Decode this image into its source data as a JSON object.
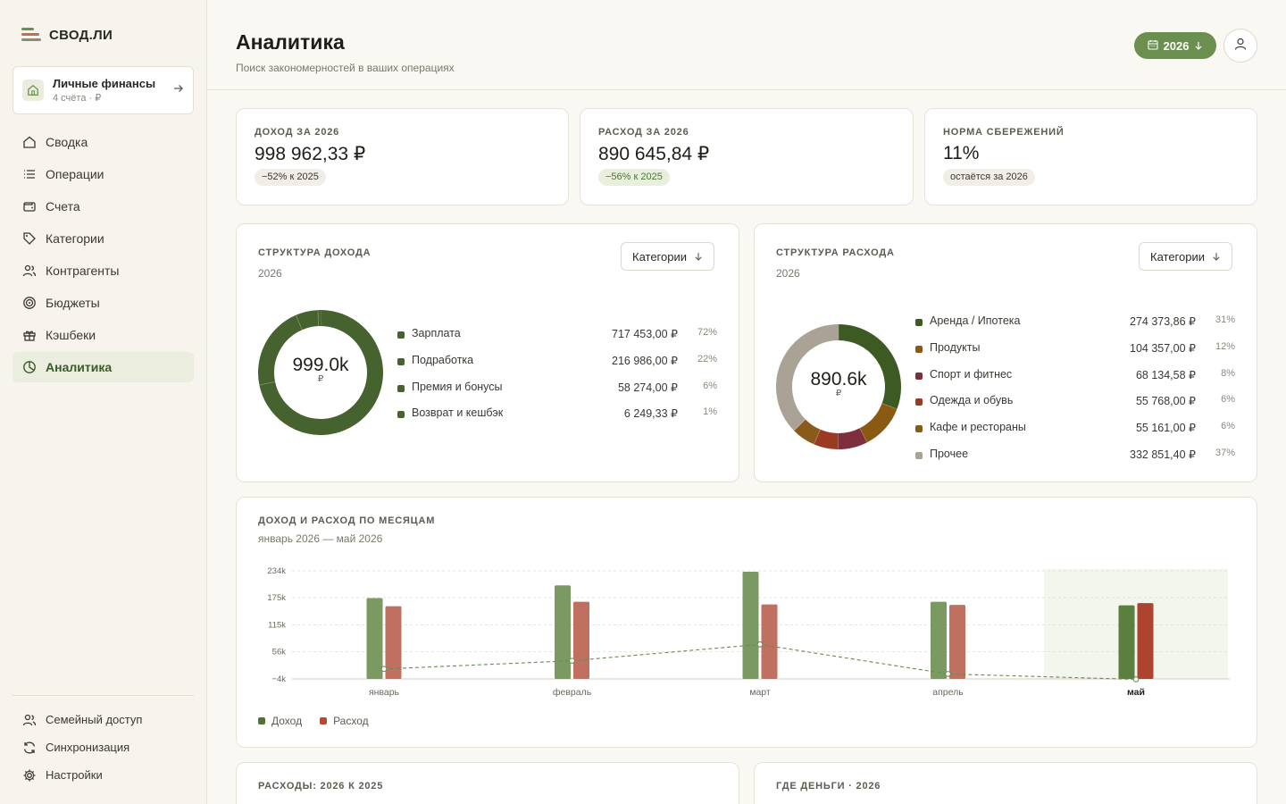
{
  "app": {
    "name": "СВОД.ЛИ"
  },
  "workspace": {
    "title": "Личные финансы",
    "subtitle": "4 счёта · ₽"
  },
  "nav": [
    {
      "label": "Сводка",
      "icon": "home-icon"
    },
    {
      "label": "Операции",
      "icon": "list-icon"
    },
    {
      "label": "Счета",
      "icon": "wallet-icon"
    },
    {
      "label": "Категории",
      "icon": "tag-icon"
    },
    {
      "label": "Контрагенты",
      "icon": "users-icon"
    },
    {
      "label": "Бюджеты",
      "icon": "target-icon"
    },
    {
      "label": "Кэшбеки",
      "icon": "gift-icon"
    },
    {
      "label": "Аналитика",
      "icon": "pie-icon",
      "active": true
    }
  ],
  "nav_bottom": [
    {
      "label": "Семейный доступ",
      "icon": "users-icon"
    },
    {
      "label": "Синхронизация",
      "icon": "sync-icon"
    },
    {
      "label": "Настройки",
      "icon": "settings-icon"
    }
  ],
  "header": {
    "title": "Аналитика",
    "subtitle": "Поиск закономерностей в ваших операциях",
    "year": "2026"
  },
  "kpis": [
    {
      "label": "ДОХОД ЗА 2026",
      "value": "998 962,33 ₽",
      "badge": "−52% к 2025",
      "badge_tone": "neutral"
    },
    {
      "label": "РАСХОД ЗА 2026",
      "value": "890 645,84 ₽",
      "badge": "−56% к 2025",
      "badge_tone": "green"
    },
    {
      "label": "НОРМА СБЕРЕЖЕНИЙ",
      "value": "11%",
      "badge": "остаётся за 2026",
      "badge_tone": "neutral"
    }
  ],
  "income_structure": {
    "title": "СТРУКТУРА ДОХОДА",
    "subtitle": "2026",
    "select": "Категории",
    "center_value": "999.0k",
    "center_unit": "₽",
    "items": [
      {
        "name": "Зарплата",
        "amount": "717 453,00 ₽",
        "pct": "72%",
        "share": 71.8,
        "color": "#46622f"
      },
      {
        "name": "Подработка",
        "amount": "216 986,00 ₽",
        "pct": "22%",
        "share": 21.7,
        "color": "#46622f"
      },
      {
        "name": "Премия и бонусы",
        "amount": "58 274,00 ₽",
        "pct": "6%",
        "share": 5.8,
        "color": "#46622f"
      },
      {
        "name": "Возврат и кешбэк",
        "amount": "6 249,33 ₽",
        "pct": "1%",
        "share": 0.7,
        "color": "#46622f"
      }
    ]
  },
  "expense_structure": {
    "title": "СТРУКТУРА РАСХОДА",
    "subtitle": "2026",
    "select": "Категории",
    "center_value": "890.6k",
    "center_unit": "₽",
    "items": [
      {
        "name": "Аренда / Ипотека",
        "amount": "274 373,86 ₽",
        "pct": "31%",
        "share": 30.8,
        "color": "#3d5a22"
      },
      {
        "name": "Продукты",
        "amount": "104 357,00 ₽",
        "pct": "12%",
        "share": 11.7,
        "color": "#8b5a12"
      },
      {
        "name": "Спорт и фитнес",
        "amount": "68 134,58 ₽",
        "pct": "8%",
        "share": 7.7,
        "color": "#7e2e3c"
      },
      {
        "name": "Одежда и обувь",
        "amount": "55 768,00 ₽",
        "pct": "6%",
        "share": 6.3,
        "color": "#9a3a22"
      },
      {
        "name": "Кафе и рестораны",
        "amount": "55 161,00 ₽",
        "pct": "6%",
        "share": 6.2,
        "color": "#8a5a1a"
      },
      {
        "name": "Прочее",
        "amount": "332 851,40 ₽",
        "pct": "37%",
        "share": 37.4,
        "color": "#aaa395"
      }
    ]
  },
  "chart_data": {
    "type": "bar",
    "title": "ДОХОД И РАСХОД ПО МЕСЯЦАМ",
    "subtitle": "январь 2026 — май 2026",
    "categories": [
      "январь",
      "февраль",
      "март",
      "апрель",
      "май"
    ],
    "y_ticks": [
      "234k",
      "175k",
      "115k",
      "56k",
      "−4k"
    ],
    "ylim": [
      -4000,
      234000
    ],
    "highlight_category": "май",
    "series": [
      {
        "name": "Доход",
        "color": "#7a9a62",
        "values": [
          174000,
          202000,
          232000,
          166000,
          158000
        ]
      },
      {
        "name": "Расход",
        "color": "#c07060",
        "values": [
          156000,
          166000,
          160000,
          159000,
          163000
        ]
      },
      {
        "name": "net",
        "type": "line",
        "color": "#6a8a50",
        "values": [
          18000,
          36000,
          72000,
          7000,
          -5000
        ]
      }
    ],
    "grid": true
  },
  "bottom_cards": [
    {
      "title": "РАСХОДЫ: 2026 К 2025"
    },
    {
      "title": "ГДЕ ДЕНЬГИ · 2026"
    }
  ]
}
